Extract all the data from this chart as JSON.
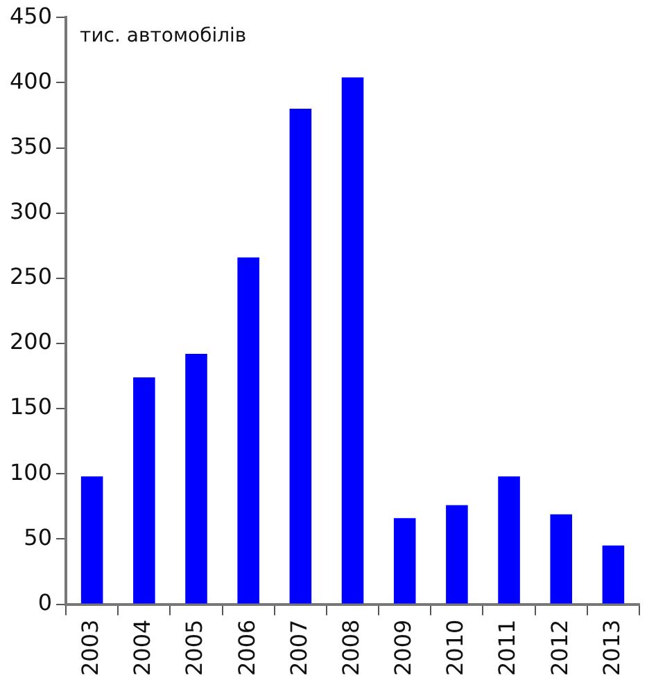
{
  "chart_data": {
    "type": "bar",
    "ylabel": "тис. автомобілів",
    "categories": [
      "2003",
      "2004",
      "2005",
      "2006",
      "2007",
      "2008",
      "2009",
      "2010",
      "2011",
      "2012",
      "2013"
    ],
    "values": [
      98,
      174,
      192,
      266,
      380,
      404,
      66,
      76,
      98,
      69,
      45
    ],
    "color": "#0000ff",
    "ylim": [
      0,
      450
    ],
    "yticks": [
      0,
      50,
      100,
      150,
      200,
      250,
      300,
      350,
      400,
      450
    ],
    "grid": false,
    "legend": false
  }
}
